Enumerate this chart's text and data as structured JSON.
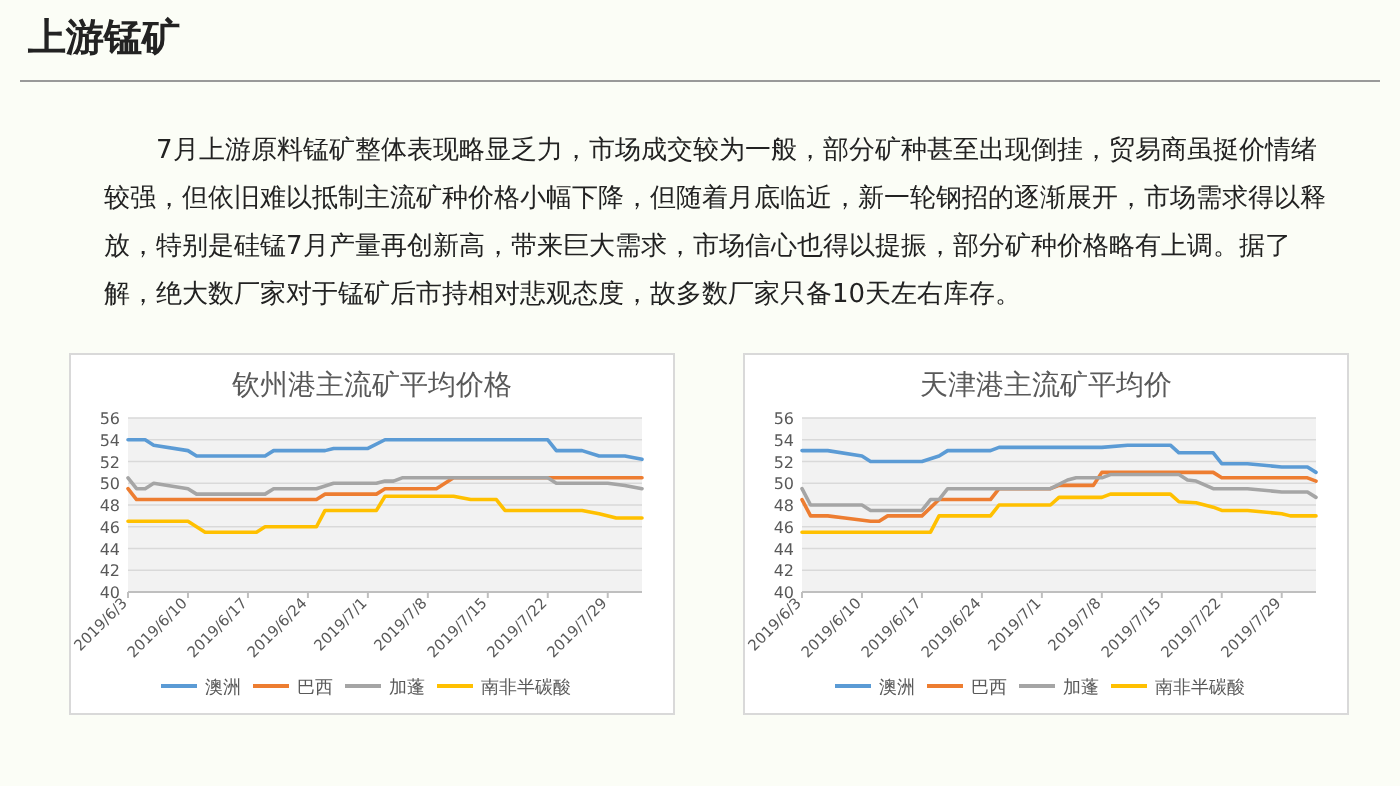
{
  "chart_data": [
    {
      "type": "other",
      "title": "上游锰矿",
      "annotations": [
        "7月上游原料锰矿整体表现略显乏力，市场成交较为一般，部分矿种甚至出现倒挂，贸易商虽挺价情绪较强，但依旧难以抵制主流矿种价格小幅下降，但随着月底临近，新一轮钢招的逐渐展开，市场需求得以释放，特别是硅锰7月产量再创新高，带来巨大需求，市场信心也得以提振，部分矿种价格略有上调。据了解，绝大数厂家对于锰矿后市持相对悲观态度，故多数厂家只备10天左右库存。"
      ]
    },
    {
      "type": "line",
      "title": "钦州港主流矿平均价格",
      "xlim": [
        "2019-06-03",
        "2019-08-02"
      ],
      "ylim": [
        40,
        56
      ],
      "yticks": [
        40,
        42,
        44,
        46,
        48,
        50,
        52,
        54,
        56
      ],
      "xticks": [
        {
          "value": "2019-06-03",
          "label": "2019/6/3"
        },
        {
          "value": "2019-06-10",
          "label": "2019/6/10"
        },
        {
          "value": "2019-06-17",
          "label": "2019/6/17"
        },
        {
          "value": "2019-06-24",
          "label": "2019/6/24"
        },
        {
          "value": "2019-07-01",
          "label": "2019/7/1"
        },
        {
          "value": "2019-07-08",
          "label": "2019/7/8"
        },
        {
          "value": "2019-07-15",
          "label": "2019/7/15"
        },
        {
          "value": "2019-07-22",
          "label": "2019/7/22"
        },
        {
          "value": "2019-07-29",
          "label": "2019/7/29"
        }
      ],
      "grid": "y",
      "legend": "bottom",
      "marker": "none",
      "series": [
        {
          "name": "澳洲",
          "color": "#5b9bd5",
          "x": [
            "2019-06-03",
            "2019-06-05",
            "2019-06-06",
            "2019-06-10",
            "2019-06-11",
            "2019-06-19",
            "2019-06-20",
            "2019-06-26",
            "2019-06-27",
            "2019-07-01",
            "2019-07-03",
            "2019-07-22",
            "2019-07-23",
            "2019-07-26",
            "2019-07-28",
            "2019-07-31",
            "2019-08-02"
          ],
          "values": [
            54,
            54,
            53.5,
            53,
            52.5,
            52.5,
            53,
            53,
            53.2,
            53.2,
            54,
            54,
            53,
            53,
            52.5,
            52.5,
            52.2
          ]
        },
        {
          "name": "巴西",
          "color": "#ed7d31",
          "x": [
            "2019-06-03",
            "2019-06-04",
            "2019-06-25",
            "2019-06-26",
            "2019-07-02",
            "2019-07-03",
            "2019-07-09",
            "2019-07-11",
            "2019-08-02"
          ],
          "values": [
            49.5,
            48.5,
            48.5,
            49,
            49,
            49.5,
            49.5,
            50.5,
            50.5
          ]
        },
        {
          "name": "加蓬",
          "color": "#a5a5a5",
          "x": [
            "2019-06-03",
            "2019-06-04",
            "2019-06-05",
            "2019-06-06",
            "2019-06-10",
            "2019-06-11",
            "2019-06-19",
            "2019-06-20",
            "2019-06-25",
            "2019-06-27",
            "2019-07-02",
            "2019-07-03",
            "2019-07-04",
            "2019-07-05",
            "2019-07-22",
            "2019-07-23",
            "2019-07-29",
            "2019-07-31",
            "2019-08-02"
          ],
          "values": [
            50.5,
            49.5,
            49.5,
            50,
            49.5,
            49,
            49,
            49.5,
            49.5,
            50,
            50,
            50.2,
            50.2,
            50.5,
            50.5,
            50,
            50,
            49.8,
            49.5
          ]
        },
        {
          "name": "南非半碳酸",
          "color": "#ffc000",
          "x": [
            "2019-06-03",
            "2019-06-10",
            "2019-06-12",
            "2019-06-18",
            "2019-06-19",
            "2019-06-25",
            "2019-06-26",
            "2019-07-02",
            "2019-07-03",
            "2019-07-11",
            "2019-07-13",
            "2019-07-16",
            "2019-07-17",
            "2019-07-26",
            "2019-07-28",
            "2019-07-30",
            "2019-08-02"
          ],
          "values": [
            46.5,
            46.5,
            45.5,
            45.5,
            46,
            46,
            47.5,
            47.5,
            48.8,
            48.8,
            48.5,
            48.5,
            47.5,
            47.5,
            47.2,
            46.8,
            46.8
          ]
        }
      ]
    },
    {
      "type": "line",
      "title": "天津港主流矿平均价",
      "xlim": [
        "2019-06-03",
        "2019-08-02"
      ],
      "ylim": [
        40,
        56
      ],
      "yticks": [
        40,
        42,
        44,
        46,
        48,
        50,
        52,
        54,
        56
      ],
      "xticks": [
        {
          "value": "2019-06-03",
          "label": "2019/6/3"
        },
        {
          "value": "2019-06-10",
          "label": "2019/6/10"
        },
        {
          "value": "2019-06-17",
          "label": "2019/6/17"
        },
        {
          "value": "2019-06-24",
          "label": "2019/6/24"
        },
        {
          "value": "2019-07-01",
          "label": "2019/7/1"
        },
        {
          "value": "2019-07-08",
          "label": "2019/7/8"
        },
        {
          "value": "2019-07-15",
          "label": "2019/7/15"
        },
        {
          "value": "2019-07-22",
          "label": "2019/7/22"
        },
        {
          "value": "2019-07-29",
          "label": "2019/7/29"
        }
      ],
      "grid": "y",
      "legend": "bottom",
      "marker": "none",
      "series": [
        {
          "name": "澳洲",
          "color": "#5b9bd5",
          "x": [
            "2019-06-03",
            "2019-06-06",
            "2019-06-10",
            "2019-06-11",
            "2019-06-17",
            "2019-06-19",
            "2019-06-20",
            "2019-06-25",
            "2019-06-26",
            "2019-07-08",
            "2019-07-11",
            "2019-07-16",
            "2019-07-17",
            "2019-07-21",
            "2019-07-22",
            "2019-07-25",
            "2019-07-29",
            "2019-08-01",
            "2019-08-02"
          ],
          "values": [
            53,
            53,
            52.5,
            52,
            52,
            52.5,
            53,
            53,
            53.3,
            53.3,
            53.5,
            53.5,
            52.8,
            52.8,
            51.8,
            51.8,
            51.5,
            51.5,
            51
          ]
        },
        {
          "name": "巴西",
          "color": "#ed7d31",
          "x": [
            "2019-06-03",
            "2019-06-04",
            "2019-06-06",
            "2019-06-08",
            "2019-06-11",
            "2019-06-12",
            "2019-06-13",
            "2019-06-17",
            "2019-06-19",
            "2019-06-25",
            "2019-06-26",
            "2019-07-02",
            "2019-07-03",
            "2019-07-07",
            "2019-07-08",
            "2019-07-21",
            "2019-07-22",
            "2019-08-01",
            "2019-08-02"
          ],
          "values": [
            48.5,
            47,
            47,
            46.8,
            46.5,
            46.5,
            47,
            47,
            48.5,
            48.5,
            49.5,
            49.5,
            49.8,
            49.8,
            51,
            51,
            50.5,
            50.5,
            50.2
          ]
        },
        {
          "name": "加蓬",
          "color": "#a5a5a5",
          "x": [
            "2019-06-03",
            "2019-06-04",
            "2019-06-10",
            "2019-06-11",
            "2019-06-17",
            "2019-06-18",
            "2019-06-19",
            "2019-06-20",
            "2019-07-02",
            "2019-07-04",
            "2019-07-05",
            "2019-07-08",
            "2019-07-09",
            "2019-07-17",
            "2019-07-18",
            "2019-07-19",
            "2019-07-21",
            "2019-07-25",
            "2019-07-29",
            "2019-08-01",
            "2019-08-02"
          ],
          "values": [
            49.5,
            48,
            48,
            47.5,
            47.5,
            48.5,
            48.5,
            49.5,
            49.5,
            50.3,
            50.5,
            50.5,
            50.8,
            50.8,
            50.3,
            50.2,
            49.5,
            49.5,
            49.2,
            49.2,
            48.7
          ]
        },
        {
          "name": "南非半碳酸",
          "color": "#ffc000",
          "x": [
            "2019-06-03",
            "2019-06-18",
            "2019-06-19",
            "2019-06-25",
            "2019-06-26",
            "2019-07-02",
            "2019-07-03",
            "2019-07-08",
            "2019-07-09",
            "2019-07-16",
            "2019-07-17",
            "2019-07-19",
            "2019-07-21",
            "2019-07-22",
            "2019-07-25",
            "2019-07-29",
            "2019-07-30",
            "2019-08-02"
          ],
          "values": [
            45.5,
            45.5,
            47,
            47,
            48,
            48,
            48.7,
            48.7,
            49,
            49,
            48.3,
            48.2,
            47.8,
            47.5,
            47.5,
            47.2,
            47,
            47
          ]
        }
      ]
    }
  ]
}
